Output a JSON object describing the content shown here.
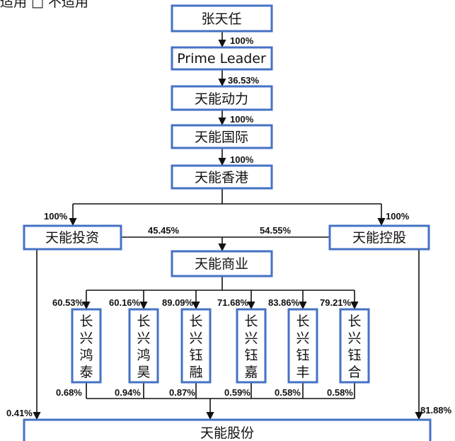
{
  "caption": "适用 □ 不适用",
  "entities": {
    "zhang": "张天任",
    "prime": "Prime Leader",
    "dongli": "天能动力",
    "guoji": "天能国际",
    "hk": "天能香港",
    "touzi": "天能投资",
    "kong": "天能控股",
    "shangye": "天能商业",
    "gufen": "天能股份",
    "subs": [
      "长兴鸿泰",
      "长兴鸿昊",
      "长兴钰融",
      "长兴钰嘉",
      "长兴钰丰",
      "长兴钰合"
    ]
  },
  "shares": {
    "zhang_prime": "100%",
    "prime_dongli": "36.53%",
    "dongli_guoji": "100%",
    "guoji_hk": "100%",
    "hk_touzi": "100%",
    "hk_kong": "100%",
    "touzi_shangye": "45.45%",
    "kong_shangye": "54.55%",
    "shangye_subs": [
      "60.53%",
      "60.16%",
      "89.09%",
      "71.68%",
      "83.86%",
      "79.21%"
    ],
    "subs_gufen": [
      "0.68%",
      "0.94%",
      "0.87%",
      "0.59%",
      "0.58%",
      "0.58%"
    ],
    "touzi_gufen": "0.41%",
    "kong_gufen": "81.88%"
  },
  "colors": {
    "box_border": "#4472c4",
    "line": "#111111"
  }
}
